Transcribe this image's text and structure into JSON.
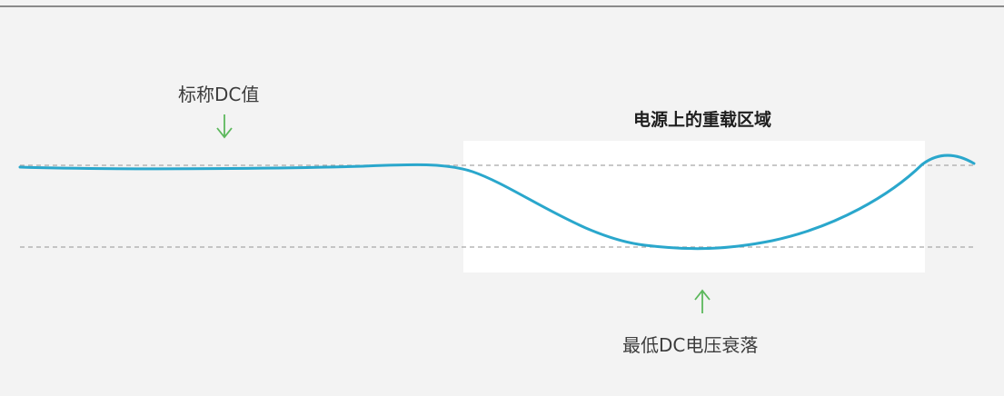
{
  "labels": {
    "nominal_dc": "标称DC值",
    "heavy_load_region": "电源上的重载区域",
    "min_dc_drop": "最低DC电压衰落"
  },
  "colors": {
    "background": "#f3f3f3",
    "region_fill": "#ffffff",
    "waveform": "#2aa7cc",
    "reference_lines": "#a8a8a8",
    "arrows": "#5cb85c",
    "text": "#333333"
  },
  "icons": {
    "nominal_arrow": "arrow-down-icon",
    "min_arrow": "arrow-up-icon"
  }
}
